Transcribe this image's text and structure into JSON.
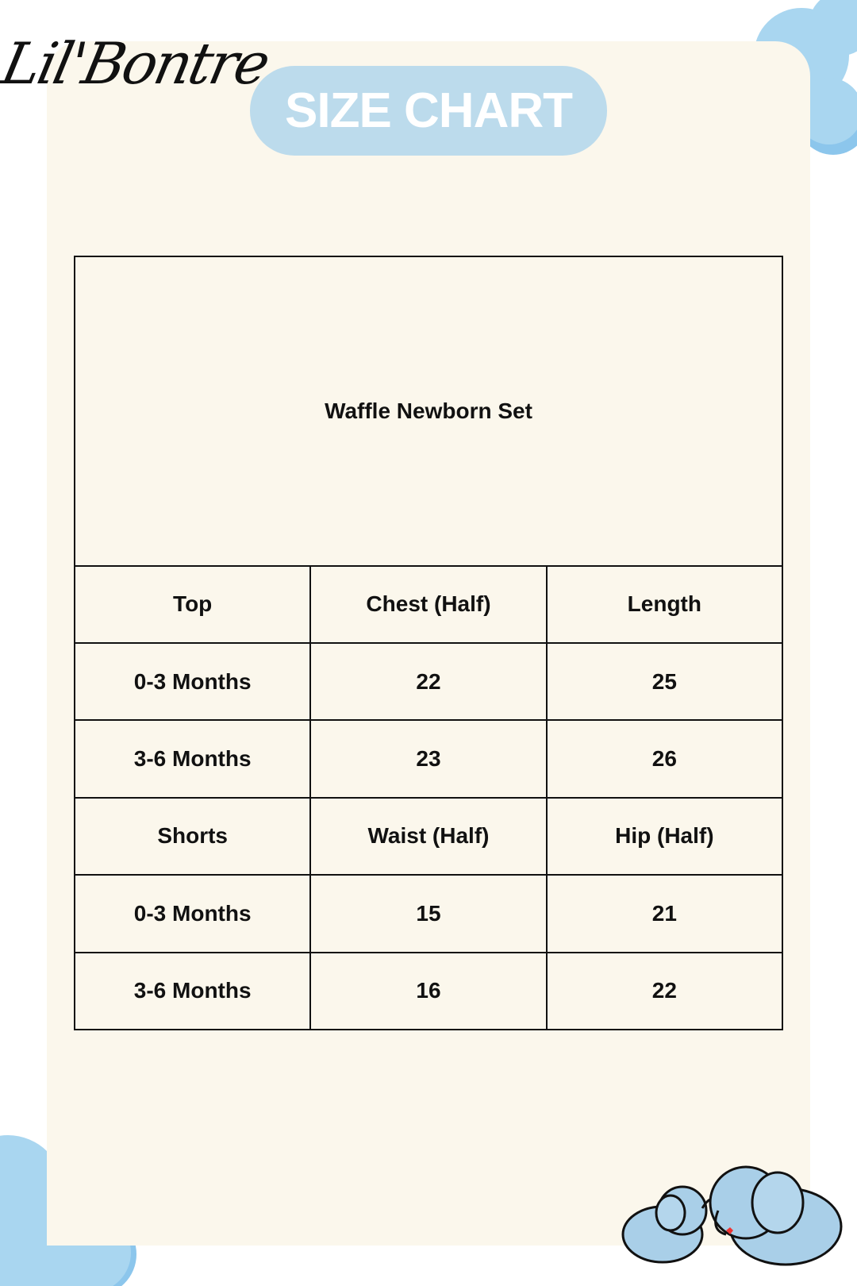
{
  "brand": {
    "logo_text": "Lil'Bontre"
  },
  "header": {
    "title": "SIZE CHART"
  },
  "table": {
    "title": "Waffle Newborn Set",
    "rows": [
      [
        "Top",
        "Chest (Half)",
        "Length"
      ],
      [
        "0-3 Months",
        "22",
        "25"
      ],
      [
        "3-6 Months",
        "23",
        "26"
      ],
      [
        "Shorts",
        "Waist (Half)",
        "Hip (Half)"
      ],
      [
        "0-3 Months",
        "15",
        "21"
      ],
      [
        "3-6 Months",
        "16",
        "22"
      ]
    ]
  },
  "colors": {
    "card": "#fbf7ec",
    "pill": "#bcdbec",
    "cloud": "#a9d6f0"
  }
}
